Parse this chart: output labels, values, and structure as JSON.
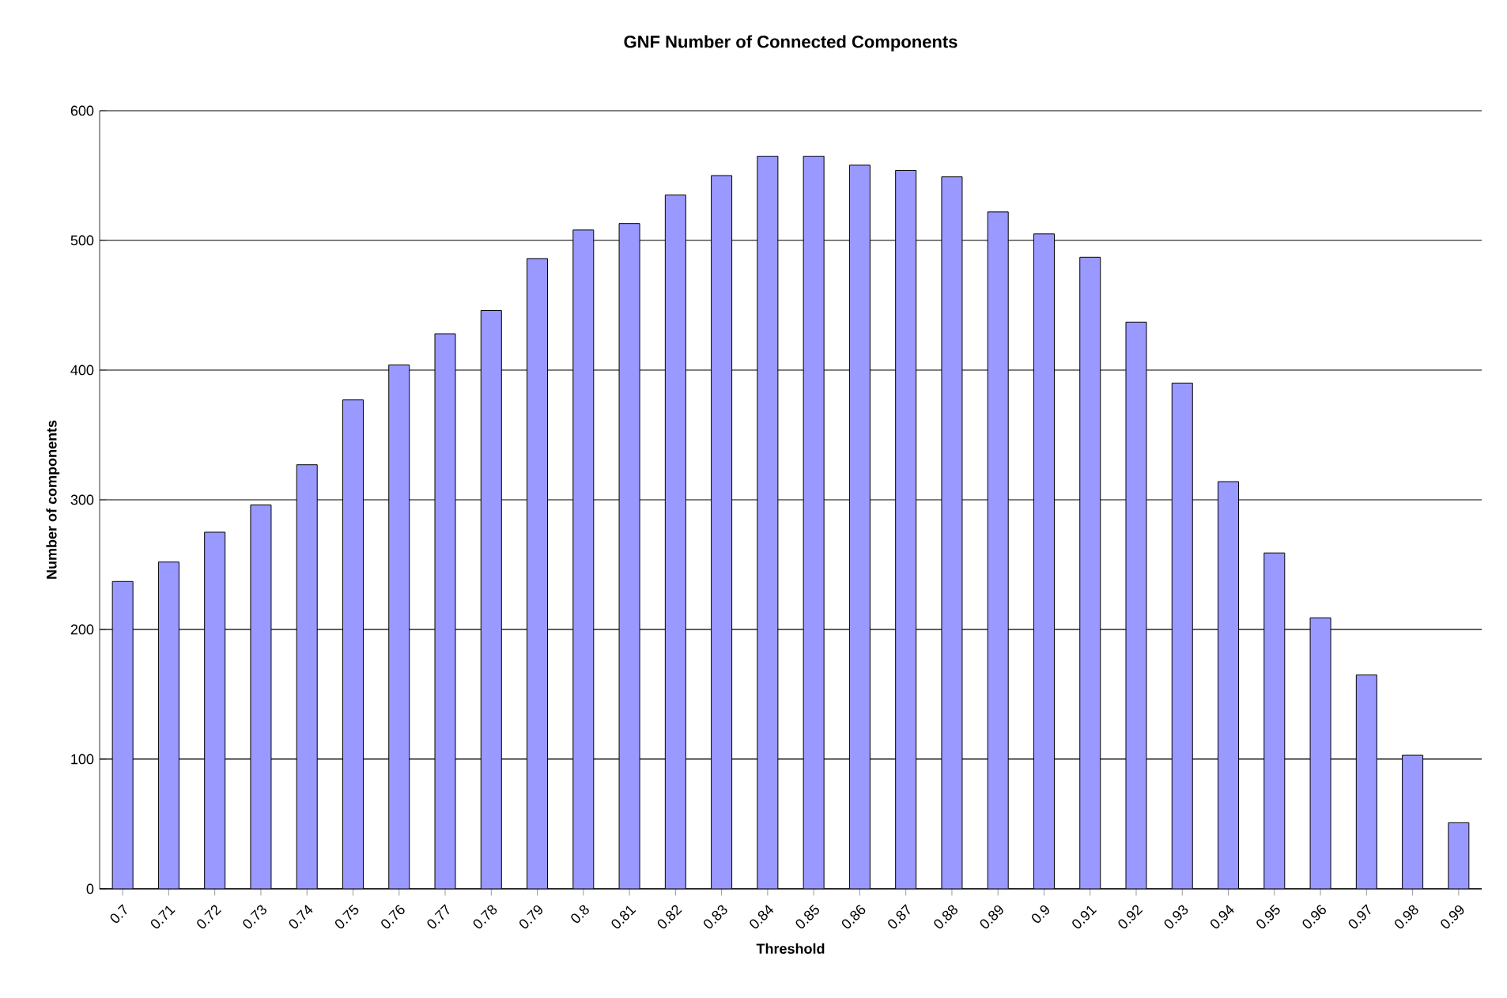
{
  "chart_data": {
    "type": "bar",
    "title": "GNF Number of Connected Components",
    "xlabel": "Threshold",
    "ylabel": "Number of components",
    "categories": [
      "0.7",
      "0.71",
      "0.72",
      "0.73",
      "0.74",
      "0.75",
      "0.76",
      "0.77",
      "0.78",
      "0.79",
      "0.8",
      "0.81",
      "0.82",
      "0.83",
      "0.84",
      "0.85",
      "0.86",
      "0.87",
      "0.88",
      "0.89",
      "0.9",
      "0.91",
      "0.92",
      "0.93",
      "0.94",
      "0.95",
      "0.96",
      "0.97",
      "0.98",
      "0.99"
    ],
    "values": [
      237,
      252,
      275,
      296,
      327,
      377,
      404,
      428,
      446,
      486,
      508,
      513,
      535,
      550,
      565,
      565,
      558,
      554,
      549,
      522,
      505,
      487,
      437,
      390,
      314,
      259,
      209,
      165,
      103,
      51
    ],
    "color": "#9999ff",
    "ylim": [
      0,
      600
    ],
    "yticks": [
      0,
      100,
      200,
      300,
      400,
      500,
      600
    ],
    "grid": "y"
  }
}
